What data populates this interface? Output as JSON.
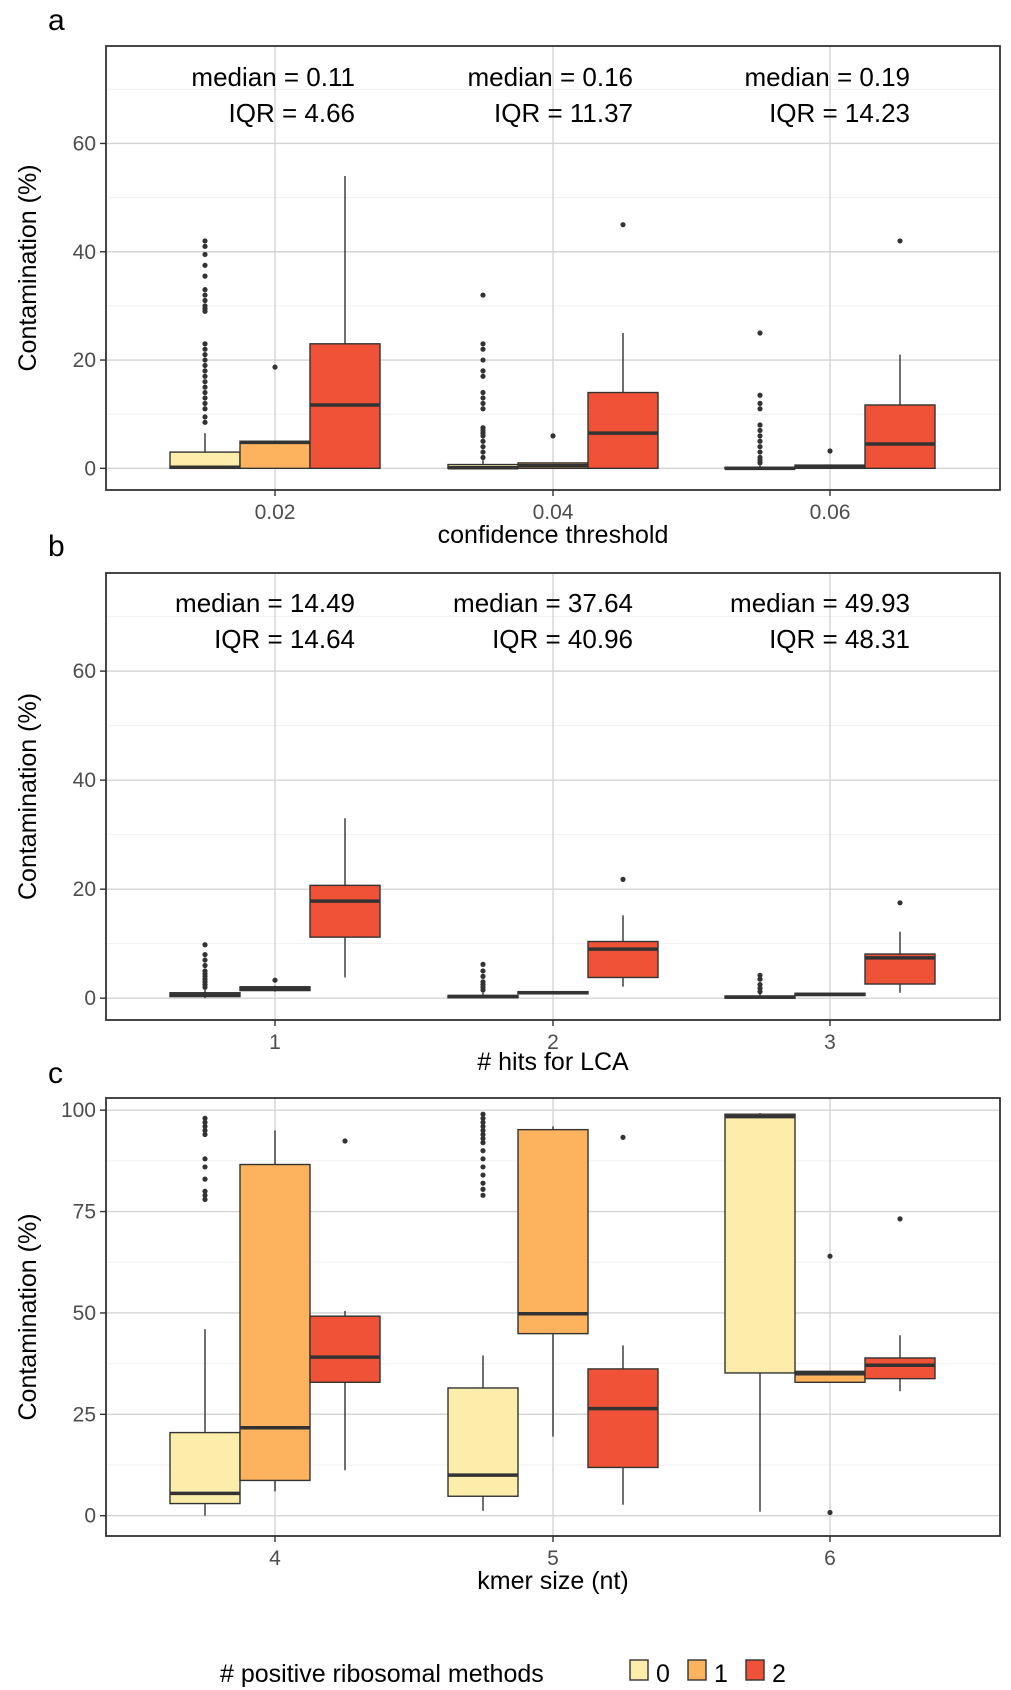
{
  "palette": {
    "0": "#fdedaa",
    "1": "#fdb35d",
    "2": "#ef5236"
  },
  "legend": {
    "title": "# positive ribosomal methods",
    "labels": [
      "0",
      "1",
      "2"
    ]
  },
  "chart_data": [
    {
      "type": "boxplot",
      "panel": "a",
      "xlabel": "confidence threshold",
      "ylabel": "Contamination (%)",
      "categories": [
        "0.02",
        "0.04",
        "0.06"
      ],
      "ylim": [
        -4,
        78
      ],
      "yticks": [
        0,
        20,
        40,
        60
      ],
      "annotations": [
        {
          "median": "median = 0.11",
          "iqr": "IQR = 4.66"
        },
        {
          "median": "median =   0.16",
          "iqr": "IQR = 11.37"
        },
        {
          "median": "median =   0.19",
          "iqr": "IQR = 14.23"
        }
      ],
      "groups": [
        {
          "category": "0.02",
          "series": "0",
          "q1": 0,
          "median": 0.2,
          "q3": 3,
          "whisker_low": 0,
          "whisker_high": 6.5,
          "outliers": [
            8.5,
            9.5,
            11,
            12,
            13,
            14,
            15,
            16,
            17,
            18,
            19,
            20,
            21,
            22,
            23,
            29,
            29.5,
            30,
            31,
            32,
            33,
            35.5,
            37.5,
            39.5,
            41,
            42
          ]
        },
        {
          "category": "0.02",
          "series": "1",
          "q1": 0,
          "median": 4.8,
          "q3": 5,
          "whisker_low": 0,
          "whisker_high": 5,
          "outliers": [
            18.7
          ]
        },
        {
          "category": "0.02",
          "series": "2",
          "q1": 0,
          "median": 11.7,
          "q3": 23,
          "whisker_low": 0,
          "whisker_high": 54,
          "outliers": []
        },
        {
          "category": "0.04",
          "series": "0",
          "q1": 0,
          "median": 0.1,
          "q3": 0.7,
          "whisker_low": 0,
          "whisker_high": 1.5,
          "outliers": [
            2,
            3,
            4,
            5,
            6,
            6.5,
            7,
            7.5,
            11,
            12,
            13,
            14,
            17,
            18,
            20,
            22,
            23,
            32
          ]
        },
        {
          "category": "0.04",
          "series": "1",
          "q1": 0,
          "median": 0.5,
          "q3": 1,
          "whisker_low": 0,
          "whisker_high": 1,
          "outliers": [
            6
          ]
        },
        {
          "category": "0.04",
          "series": "2",
          "q1": 0,
          "median": 6.5,
          "q3": 14,
          "whisker_low": 0,
          "whisker_high": 25,
          "outliers": [
            45
          ]
        },
        {
          "category": "0.06",
          "series": "0",
          "q1": 0,
          "median": 0,
          "q3": 0.2,
          "whisker_low": 0,
          "whisker_high": 0.5,
          "outliers": [
            1,
            1.5,
            2,
            3,
            4,
            5,
            6,
            7,
            8,
            11,
            12,
            13.5,
            25
          ]
        },
        {
          "category": "0.06",
          "series": "1",
          "q1": 0,
          "median": 0.3,
          "q3": 0.6,
          "whisker_low": 0,
          "whisker_high": 0.6,
          "outliers": [
            3.2
          ]
        },
        {
          "category": "0.06",
          "series": "2",
          "q1": 0,
          "median": 4.5,
          "q3": 11.7,
          "whisker_low": 0,
          "whisker_high": 21,
          "outliers": [
            42
          ]
        }
      ]
    },
    {
      "type": "boxplot",
      "panel": "b",
      "xlabel": "# hits for LCA",
      "ylabel": "Contamination (%)",
      "categories": [
        "1",
        "2",
        "3"
      ],
      "ylim": [
        -4,
        78
      ],
      "yticks": [
        0,
        20,
        40,
        60
      ],
      "annotations": [
        {
          "median": "median = 14.49",
          "iqr": "IQR = 14.64"
        },
        {
          "median": "median = 37.64",
          "iqr": "IQR = 40.96"
        },
        {
          "median": "median = 49.93",
          "iqr": "IQR = 48.31"
        }
      ],
      "groups": [
        {
          "category": "1",
          "series": "0",
          "q1": 0.3,
          "median": 0.6,
          "q3": 1,
          "whisker_low": 0,
          "whisker_high": 1.5,
          "outliers": [
            2,
            2.5,
            3,
            3.5,
            4,
            4.5,
            5,
            6,
            7,
            8,
            9.8
          ]
        },
        {
          "category": "1",
          "series": "1",
          "q1": 1.4,
          "median": 1.8,
          "q3": 2.1,
          "whisker_low": 1.2,
          "whisker_high": 2.3,
          "outliers": [
            3.3
          ]
        },
        {
          "category": "1",
          "series": "2",
          "q1": 11.2,
          "median": 17.8,
          "q3": 20.7,
          "whisker_low": 3.8,
          "whisker_high": 33,
          "outliers": []
        },
        {
          "category": "2",
          "series": "0",
          "q1": 0.1,
          "median": 0.3,
          "q3": 0.5,
          "whisker_low": 0,
          "whisker_high": 1,
          "outliers": [
            1.5,
            2,
            2.5,
            3,
            4,
            5,
            6.2
          ]
        },
        {
          "category": "2",
          "series": "1",
          "q1": 0.8,
          "median": 1,
          "q3": 1.2,
          "whisker_low": 0.7,
          "whisker_high": 1.3,
          "outliers": []
        },
        {
          "category": "2",
          "series": "2",
          "q1": 3.8,
          "median": 9,
          "q3": 10.4,
          "whisker_low": 2.1,
          "whisker_high": 15.2,
          "outliers": [
            21.8
          ]
        },
        {
          "category": "3",
          "series": "0",
          "q1": 0,
          "median": 0.2,
          "q3": 0.4,
          "whisker_low": 0,
          "whisker_high": 0.8,
          "outliers": [
            1.2,
            1.8,
            2.5,
            3.5,
            4.2
          ]
        },
        {
          "category": "3",
          "series": "1",
          "q1": 0.5,
          "median": 0.7,
          "q3": 0.9,
          "whisker_low": 0.4,
          "whisker_high": 1,
          "outliers": []
        },
        {
          "category": "3",
          "series": "2",
          "q1": 2.6,
          "median": 7.4,
          "q3": 8.1,
          "whisker_low": 1,
          "whisker_high": 12.2,
          "outliers": [
            17.5
          ]
        }
      ]
    },
    {
      "type": "boxplot",
      "panel": "c",
      "xlabel": "kmer size (nt)",
      "ylabel": "Contamination (%)",
      "categories": [
        "4",
        "5",
        "6"
      ],
      "ylim": [
        -5,
        103
      ],
      "yticks": [
        0,
        25,
        50,
        75,
        100
      ],
      "annotations": [],
      "groups": [
        {
          "category": "4",
          "series": "0",
          "q1": 3,
          "median": 5.5,
          "q3": 20.5,
          "whisker_low": 0,
          "whisker_high": 46,
          "outliers": [
            78,
            79,
            80,
            83,
            86,
            88,
            94,
            95,
            96,
            97,
            98
          ]
        },
        {
          "category": "4",
          "series": "1",
          "q1": 8.7,
          "median": 21.7,
          "q3": 86.6,
          "whisker_low": 6,
          "whisker_high": 95,
          "outliers": []
        },
        {
          "category": "4",
          "series": "2",
          "q1": 32.9,
          "median": 39.1,
          "q3": 49.2,
          "whisker_low": 11.2,
          "whisker_high": 50.5,
          "outliers": [
            92.4
          ]
        },
        {
          "category": "5",
          "series": "0",
          "q1": 4.8,
          "median": 10,
          "q3": 31.5,
          "whisker_low": 1.2,
          "whisker_high": 39.5,
          "outliers": [
            79,
            80.5,
            82,
            84,
            86,
            88,
            90,
            92,
            93,
            94,
            95,
            96,
            97,
            98,
            99
          ]
        },
        {
          "category": "5",
          "series": "1",
          "q1": 44.9,
          "median": 49.8,
          "q3": 95.2,
          "whisker_low": 19.5,
          "whisker_high": 96,
          "outliers": []
        },
        {
          "category": "5",
          "series": "2",
          "q1": 11.9,
          "median": 26.4,
          "q3": 36.2,
          "whisker_low": 2.7,
          "whisker_high": 42,
          "outliers": [
            93.3
          ]
        },
        {
          "category": "6",
          "series": "0",
          "q1": 35.2,
          "median": 98.4,
          "q3": 99,
          "whisker_low": 1,
          "whisker_high": 99.3,
          "outliers": []
        },
        {
          "category": "6",
          "series": "1",
          "q1": 32.9,
          "median": 35,
          "q3": 35.6,
          "whisker_low": 32.9,
          "whisker_high": 35.6,
          "outliers": [
            64,
            0.8
          ]
        },
        {
          "category": "6",
          "series": "2",
          "q1": 33.8,
          "median": 37.1,
          "q3": 38.9,
          "whisker_low": 30.7,
          "whisker_high": 44.5,
          "outliers": [
            73.2
          ]
        }
      ]
    }
  ]
}
